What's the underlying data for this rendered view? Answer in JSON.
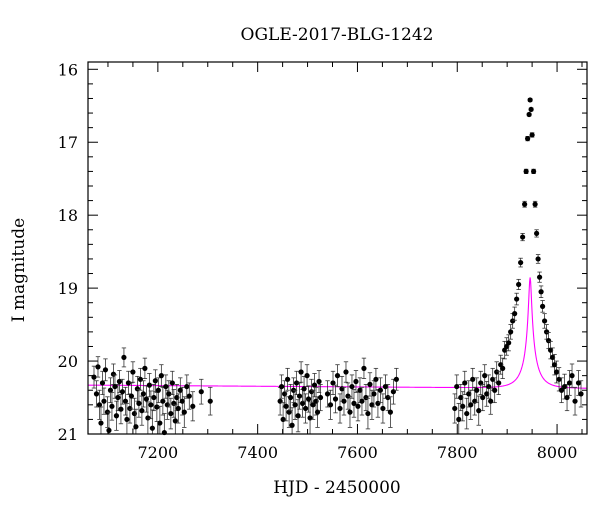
{
  "chart_data": {
    "type": "scatter",
    "title": "OGLE-2017-BLG-1242",
    "xlabel": "HJD - 2450000",
    "ylabel": "I magnitude",
    "xlim": [
      7060,
      8060
    ],
    "ylim": [
      21.0,
      15.9
    ],
    "y_inverted": true,
    "x_ticks": [
      7200,
      7400,
      7600,
      7800,
      8000
    ],
    "y_ticks": [
      16,
      17,
      18,
      19,
      20,
      21
    ],
    "grid": false,
    "point_color": "#000000",
    "model_color": "#ff00ff",
    "model": {
      "t0": 7946,
      "u0": 0.09,
      "tE": 30,
      "fs": 0.3,
      "baseline": 20.33,
      "slope_per_day": 4.5e-05,
      "pivot_x": 7060
    },
    "points": [
      [
        7072,
        20.22,
        0.15
      ],
      [
        7077,
        20.45,
        0.18
      ],
      [
        7080,
        20.08,
        0.14
      ],
      [
        7083,
        20.6,
        0.2
      ],
      [
        7086,
        20.85,
        0.22
      ],
      [
        7089,
        20.3,
        0.16
      ],
      [
        7092,
        20.55,
        0.18
      ],
      [
        7095,
        20.12,
        0.15
      ],
      [
        7099,
        20.7,
        0.21
      ],
      [
        7102,
        20.95,
        0.25
      ],
      [
        7105,
        20.4,
        0.17
      ],
      [
        7108,
        20.62,
        0.19
      ],
      [
        7111,
        20.18,
        0.14
      ],
      [
        7114,
        20.35,
        0.16
      ],
      [
        7117,
        20.75,
        0.2
      ],
      [
        7120,
        20.5,
        0.18
      ],
      [
        7123,
        20.28,
        0.15
      ],
      [
        7126,
        20.66,
        0.2
      ],
      [
        7129,
        20.42,
        0.17
      ],
      [
        7132,
        19.95,
        0.13
      ],
      [
        7135,
        20.55,
        0.19
      ],
      [
        7138,
        20.8,
        0.22
      ],
      [
        7141,
        20.3,
        0.16
      ],
      [
        7144,
        20.65,
        0.2
      ],
      [
        7147,
        20.48,
        0.18
      ],
      [
        7150,
        20.15,
        0.14
      ],
      [
        7153,
        20.72,
        0.21
      ],
      [
        7156,
        20.9,
        0.24
      ],
      [
        7159,
        20.38,
        0.17
      ],
      [
        7162,
        20.58,
        0.19
      ],
      [
        7165,
        20.25,
        0.15
      ],
      [
        7168,
        20.68,
        0.2
      ],
      [
        7171,
        20.45,
        0.18
      ],
      [
        7174,
        20.1,
        0.14
      ],
      [
        7177,
        20.52,
        0.18
      ],
      [
        7180,
        20.78,
        0.22
      ],
      [
        7183,
        20.33,
        0.16
      ],
      [
        7186,
        20.6,
        0.19
      ],
      [
        7189,
        20.92,
        0.25
      ],
      [
        7192,
        20.5,
        0.18
      ],
      [
        7195,
        20.27,
        0.15
      ],
      [
        7198,
        20.63,
        0.2
      ],
      [
        7201,
        20.4,
        0.17
      ],
      [
        7204,
        20.85,
        0.23
      ],
      [
        7207,
        20.2,
        0.15
      ],
      [
        7210,
        20.55,
        0.19
      ],
      [
        7213,
        20.98,
        0.26
      ],
      [
        7216,
        20.35,
        0.16
      ],
      [
        7219,
        20.6,
        0.2
      ],
      [
        7222,
        20.45,
        0.18
      ],
      [
        7226,
        20.72,
        0.21
      ],
      [
        7229,
        20.3,
        0.16
      ],
      [
        7232,
        20.58,
        0.19
      ],
      [
        7235,
        20.82,
        0.22
      ],
      [
        7238,
        20.5,
        0.18
      ],
      [
        7241,
        20.65,
        0.2
      ],
      [
        7245,
        20.4,
        0.17
      ],
      [
        7249,
        20.55,
        0.19
      ],
      [
        7253,
        20.7,
        0.21
      ],
      [
        7258,
        20.35,
        0.16
      ],
      [
        7263,
        20.48,
        0.18
      ],
      [
        7270,
        20.62,
        0.2
      ],
      [
        7287,
        20.42,
        0.17
      ],
      [
        7305,
        20.55,
        0.19
      ],
      [
        7445,
        20.55,
        0.19
      ],
      [
        7448,
        20.35,
        0.16
      ],
      [
        7451,
        20.8,
        0.23
      ],
      [
        7454,
        20.45,
        0.18
      ],
      [
        7457,
        20.62,
        0.2
      ],
      [
        7460,
        20.25,
        0.15
      ],
      [
        7463,
        20.7,
        0.21
      ],
      [
        7466,
        20.5,
        0.18
      ],
      [
        7469,
        20.88,
        0.24
      ],
      [
        7472,
        20.4,
        0.17
      ],
      [
        7475,
        20.6,
        0.2
      ],
      [
        7478,
        20.3,
        0.16
      ],
      [
        7481,
        20.75,
        0.22
      ],
      [
        7484,
        20.48,
        0.18
      ],
      [
        7487,
        20.15,
        0.14
      ],
      [
        7490,
        20.58,
        0.19
      ],
      [
        7493,
        20.38,
        0.17
      ],
      [
        7496,
        20.65,
        0.2
      ],
      [
        7499,
        20.2,
        0.15
      ],
      [
        7502,
        20.52,
        0.18
      ],
      [
        7505,
        20.78,
        0.22
      ],
      [
        7508,
        20.42,
        0.17
      ],
      [
        7511,
        20.6,
        0.2
      ],
      [
        7514,
        20.33,
        0.16
      ],
      [
        7517,
        20.55,
        0.19
      ],
      [
        7520,
        20.7,
        0.21
      ],
      [
        7523,
        20.28,
        0.15
      ],
      [
        7526,
        20.5,
        0.18
      ],
      [
        7540,
        20.45,
        0.18
      ],
      [
        7546,
        20.6,
        0.2
      ],
      [
        7551,
        20.3,
        0.16
      ],
      [
        7556,
        20.52,
        0.19
      ],
      [
        7560,
        20.2,
        0.15
      ],
      [
        7565,
        20.65,
        0.2
      ],
      [
        7569,
        20.38,
        0.17
      ],
      [
        7573,
        20.55,
        0.19
      ],
      [
        7577,
        20.15,
        0.14
      ],
      [
        7581,
        20.48,
        0.18
      ],
      [
        7585,
        20.7,
        0.21
      ],
      [
        7589,
        20.35,
        0.16
      ],
      [
        7593,
        20.58,
        0.19
      ],
      [
        7597,
        20.28,
        0.15
      ],
      [
        7601,
        20.62,
        0.2
      ],
      [
        7605,
        20.4,
        0.17
      ],
      [
        7609,
        20.55,
        0.19
      ],
      [
        7613,
        20.1,
        0.14
      ],
      [
        7617,
        20.5,
        0.18
      ],
      [
        7621,
        20.72,
        0.21
      ],
      [
        7625,
        20.32,
        0.16
      ],
      [
        7629,
        20.6,
        0.2
      ],
      [
        7633,
        20.45,
        0.18
      ],
      [
        7637,
        20.25,
        0.15
      ],
      [
        7641,
        20.58,
        0.19
      ],
      [
        7646,
        20.4,
        0.17
      ],
      [
        7651,
        20.65,
        0.2
      ],
      [
        7656,
        20.35,
        0.16
      ],
      [
        7661,
        20.5,
        0.18
      ],
      [
        7666,
        20.7,
        0.21
      ],
      [
        7672,
        20.42,
        0.17
      ],
      [
        7678,
        20.25,
        0.15
      ],
      [
        7795,
        20.65,
        0.2
      ],
      [
        7799,
        20.35,
        0.16
      ],
      [
        7803,
        20.8,
        0.22
      ],
      [
        7807,
        20.5,
        0.18
      ],
      [
        7811,
        20.62,
        0.2
      ],
      [
        7815,
        20.3,
        0.16
      ],
      [
        7819,
        20.72,
        0.21
      ],
      [
        7823,
        20.45,
        0.18
      ],
      [
        7827,
        20.6,
        0.2
      ],
      [
        7831,
        20.25,
        0.15
      ],
      [
        7835,
        20.55,
        0.19
      ],
      [
        7839,
        20.4,
        0.17
      ],
      [
        7843,
        20.68,
        0.2
      ],
      [
        7847,
        20.3,
        0.16
      ],
      [
        7851,
        20.5,
        0.18
      ],
      [
        7855,
        20.2,
        0.15
      ],
      [
        7859,
        20.45,
        0.17
      ],
      [
        7863,
        20.35,
        0.16
      ],
      [
        7867,
        20.55,
        0.18
      ],
      [
        7871,
        20.25,
        0.15
      ],
      [
        7875,
        20.4,
        0.17
      ],
      [
        7879,
        20.15,
        0.14
      ],
      [
        7883,
        20.3,
        0.16
      ],
      [
        7887,
        20.05,
        0.13
      ],
      [
        7891,
        20.1,
        0.14
      ],
      [
        7895,
        19.85,
        0.12
      ],
      [
        7899,
        19.8,
        0.12
      ],
      [
        7903,
        19.75,
        0.11
      ],
      [
        7907,
        19.6,
        0.1
      ],
      [
        7911,
        19.45,
        0.1
      ],
      [
        7915,
        19.35,
        0.09
      ],
      [
        7919,
        19.15,
        0.08
      ],
      [
        7923,
        18.95,
        0.07
      ],
      [
        7927,
        18.65,
        0.06
      ],
      [
        7931,
        18.3,
        0.05
      ],
      [
        7935,
        17.85,
        0.04
      ],
      [
        7938,
        17.4,
        0.03
      ],
      [
        7941,
        16.95,
        0.03
      ],
      [
        7944,
        16.62,
        0.02
      ],
      [
        7946,
        16.42,
        0.02
      ],
      [
        7948,
        16.55,
        0.02
      ],
      [
        7950,
        16.9,
        0.03
      ],
      [
        7953,
        17.4,
        0.03
      ],
      [
        7956,
        17.85,
        0.04
      ],
      [
        7959,
        18.25,
        0.05
      ],
      [
        7962,
        18.6,
        0.06
      ],
      [
        7965,
        18.85,
        0.07
      ],
      [
        7968,
        19.05,
        0.08
      ],
      [
        7971,
        19.25,
        0.08
      ],
      [
        7975,
        19.45,
        0.1
      ],
      [
        7979,
        19.6,
        0.1
      ],
      [
        7983,
        19.72,
        0.11
      ],
      [
        7987,
        19.85,
        0.12
      ],
      [
        7991,
        19.95,
        0.13
      ],
      [
        7995,
        20.05,
        0.14
      ],
      [
        7999,
        20.15,
        0.15
      ],
      [
        8004,
        20.25,
        0.16
      ],
      [
        8009,
        20.4,
        0.17
      ],
      [
        8015,
        20.35,
        0.17
      ],
      [
        8020,
        20.5,
        0.18
      ],
      [
        8025,
        20.3,
        0.17
      ],
      [
        8030,
        20.2,
        0.16
      ],
      [
        8036,
        20.55,
        0.19
      ],
      [
        8043,
        20.3,
        0.17
      ],
      [
        8048,
        20.45,
        0.18
      ]
    ]
  }
}
